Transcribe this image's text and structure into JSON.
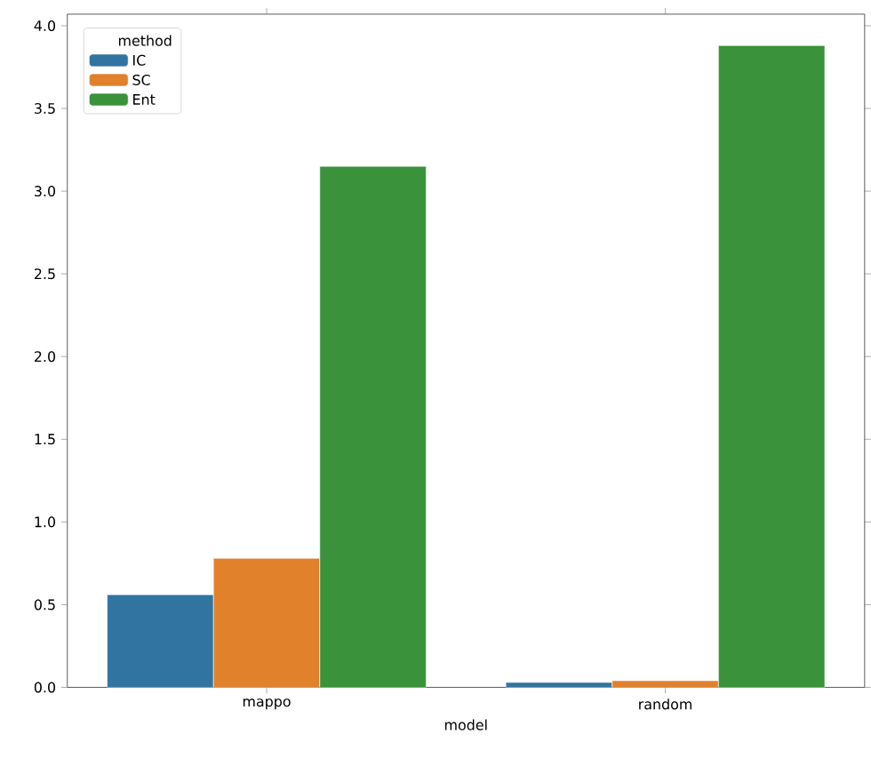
{
  "chart_data": {
    "type": "bar",
    "xlabel": "model",
    "categories": [
      "mappo",
      "random"
    ],
    "legend_title": "method",
    "legend": "top left",
    "series": [
      {
        "name": "IC",
        "color": "#3274a1",
        "values": [
          0.56,
          0.03
        ]
      },
      {
        "name": "SC",
        "color": "#e1812c",
        "values": [
          0.78,
          0.04
        ]
      },
      {
        "name": "Ent",
        "color": "#3a923a",
        "values": [
          3.15,
          3.88
        ]
      }
    ],
    "ylim": [
      0,
      4.07
    ],
    "yticks": [
      {
        "value": 0,
        "label": "0.0"
      },
      {
        "value": 0.5,
        "label": "0.5"
      },
      {
        "value": 1,
        "label": "1.0"
      },
      {
        "value": 1.5,
        "label": "1.5"
      },
      {
        "value": 2,
        "label": "2.0"
      },
      {
        "value": 2.5,
        "label": "2.5"
      },
      {
        "value": 3,
        "label": "3.0"
      },
      {
        "value": 3.5,
        "label": "3.5"
      },
      {
        "value": 4,
        "label": "4.0"
      }
    ]
  }
}
